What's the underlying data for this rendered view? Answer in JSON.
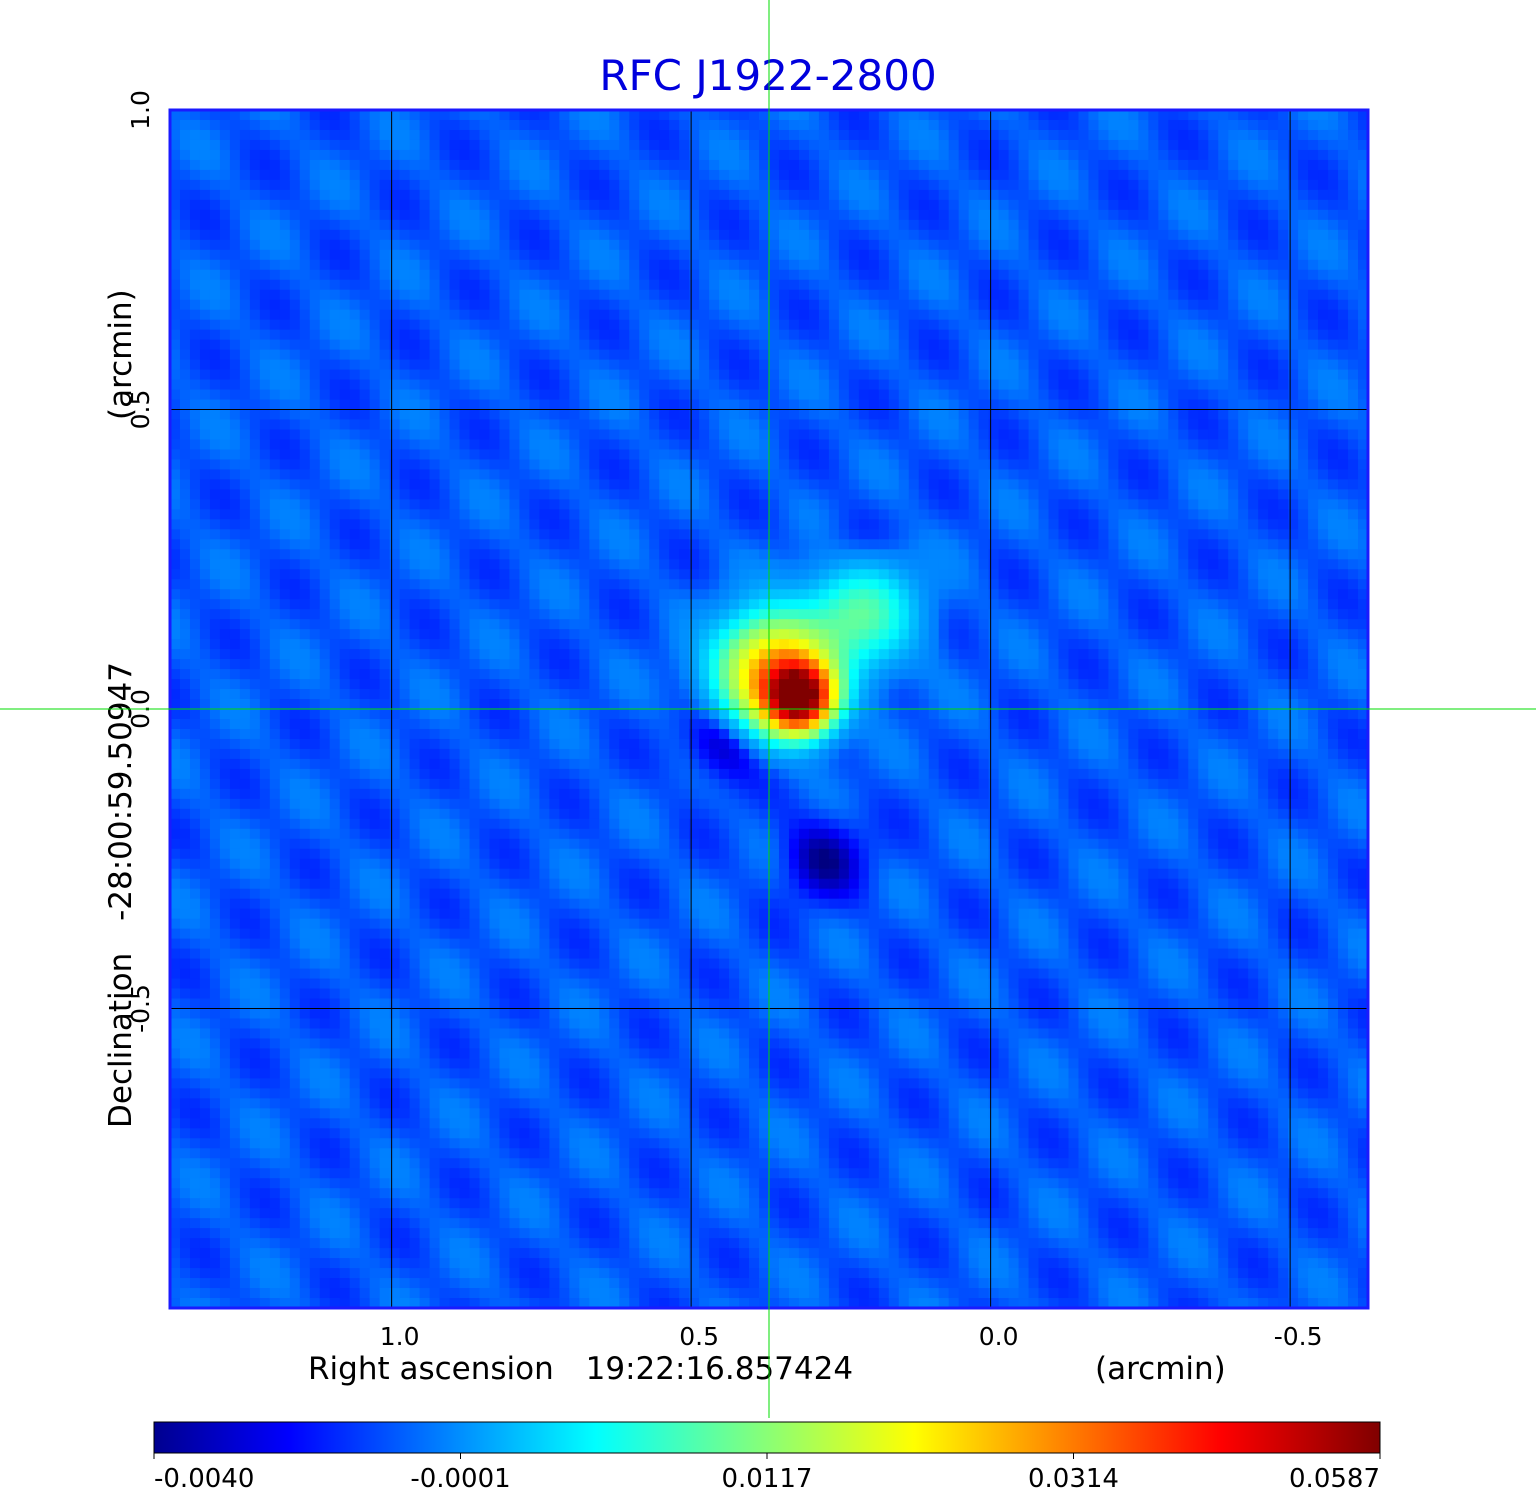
{
  "chart_data": {
    "type": "heatmap",
    "title": "RFC J1922-2800",
    "xlabel": {
      "name": "Right ascension",
      "center": "19:22:16.857424",
      "unit": "(arcmin)"
    },
    "ylabel": {
      "name": "Declination",
      "center": "-28:00:59.50947",
      "unit": "(arcmin)"
    },
    "xlim": [
      1.37,
      -0.63
    ],
    "ylim": [
      -1.0,
      1.0
    ],
    "x_ticks": [
      {
        "value": 1.0,
        "label": "1.0"
      },
      {
        "value": 0.5,
        "label": "0.5"
      },
      {
        "value": 0.0,
        "label": "0.0"
      },
      {
        "value": -0.5,
        "label": "-0.5"
      }
    ],
    "y_ticks": [
      {
        "value": 1.0,
        "label": "1.0"
      },
      {
        "value": 0.5,
        "label": "0.5"
      },
      {
        "value": 0.0,
        "label": "0.0"
      },
      {
        "value": -0.5,
        "label": "-0.5"
      }
    ],
    "grid": true,
    "crosshair": {
      "x": 0.37,
      "y": 0.0,
      "color": "#00dd00"
    },
    "colormap": "jet",
    "colorbar": {
      "min": -0.004,
      "max": 0.0587,
      "ticks": [
        "-0.0040",
        "-0.0001",
        "0.0117",
        "0.0314",
        "0.0587"
      ]
    },
    "background_level": -0.0007,
    "features": [
      {
        "kind": "peak",
        "x": 0.32,
        "y": 0.02,
        "value": 0.0587
      },
      {
        "kind": "emission",
        "x": 0.36,
        "y": 0.06,
        "value": 0.03
      },
      {
        "kind": "emission",
        "x": 0.22,
        "y": 0.16,
        "value": 0.01
      },
      {
        "kind": "negative",
        "x": 0.44,
        "y": -0.05,
        "value": -0.004
      },
      {
        "kind": "negative",
        "x": 0.28,
        "y": -0.25,
        "value": -0.0035
      },
      {
        "kind": "negative",
        "x": 0.24,
        "y": 0.25,
        "value": -0.0025
      }
    ]
  }
}
